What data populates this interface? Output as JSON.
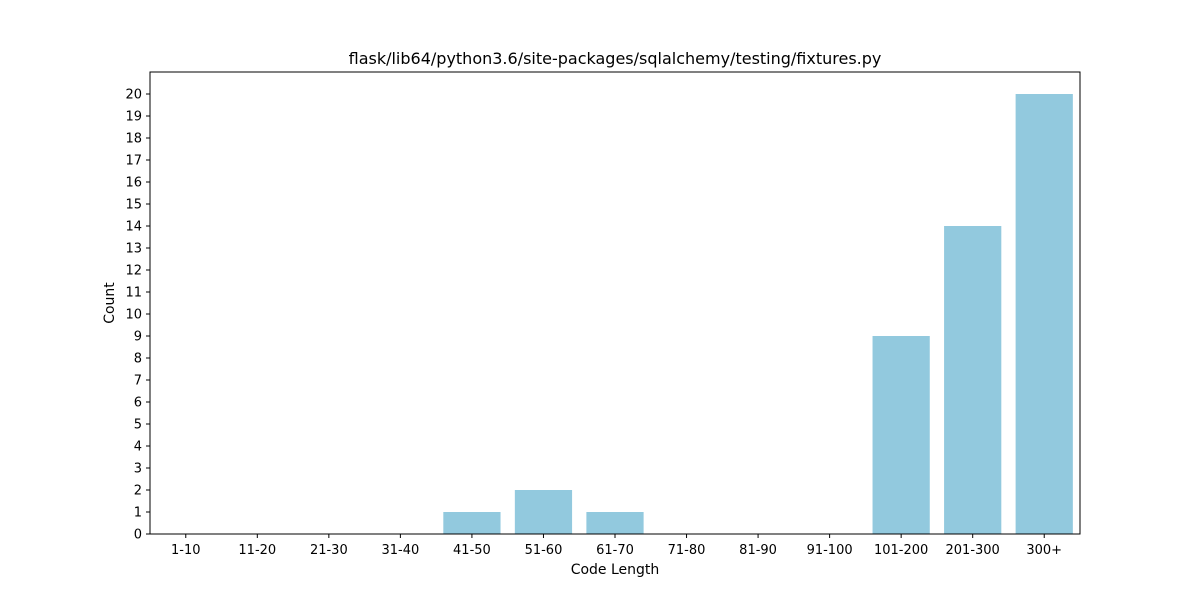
{
  "chart_data": {
    "type": "bar",
    "title": "flask/lib64/python3.6/site-packages/sqlalchemy/testing/fixtures.py",
    "xlabel": "Code Length",
    "ylabel": "Count",
    "categories": [
      "1-10",
      "11-20",
      "21-30",
      "31-40",
      "41-50",
      "51-60",
      "61-70",
      "71-80",
      "81-90",
      "91-100",
      "101-200",
      "201-300",
      "300+"
    ],
    "values": [
      0,
      0,
      0,
      0,
      1,
      2,
      1,
      0,
      0,
      0,
      9,
      14,
      20
    ],
    "ylim": [
      0,
      21
    ],
    "yticks": [
      0,
      1,
      2,
      3,
      4,
      5,
      6,
      7,
      8,
      9,
      10,
      11,
      12,
      13,
      14,
      15,
      16,
      17,
      18,
      19,
      20
    ],
    "bar_color": "#92c9de",
    "grid": false,
    "legend": false
  }
}
